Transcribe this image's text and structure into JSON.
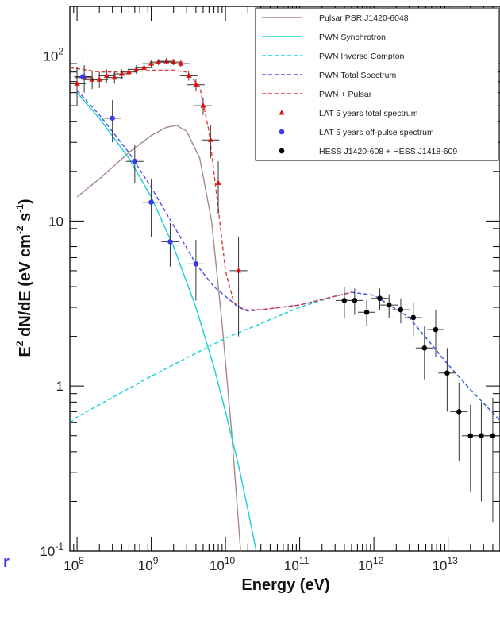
{
  "chart_data": {
    "type": "scatter",
    "title": "",
    "xlabel": "Energy (eV)",
    "ylabel": "E² dN/dE (eV cm⁻² s⁻¹)",
    "ylabel_parts": {
      "a": "E",
      "sup1": "2",
      "b": " dN/dE (eV cm",
      "sup2": "-2",
      "c": " s",
      "sup3": "-1",
      "d": ")"
    },
    "xscale": "log",
    "yscale": "log",
    "xlim": [
      80000000,
      50000000000000
    ],
    "ylim": [
      0.1,
      200
    ],
    "legend_position": "top-right",
    "x_tick_labels": [
      {
        "base": "10",
        "exp": "8",
        "value": 100000000
      },
      {
        "base": "10",
        "exp": "9",
        "value": 1000000000
      },
      {
        "base": "10",
        "exp": "10",
        "value": 10000000000
      },
      {
        "base": "10",
        "exp": "11",
        "value": 100000000000
      },
      {
        "base": "10",
        "exp": "12",
        "value": 1000000000000
      },
      {
        "base": "10",
        "exp": "13",
        "value": 10000000000000
      }
    ],
    "y_tick_labels": [
      {
        "base": "10",
        "exp": "-1",
        "value": 0.1
      },
      {
        "base": "1",
        "exp": "",
        "value": 1
      },
      {
        "base": "10",
        "exp": "",
        "value": 10
      },
      {
        "base": "10",
        "exp": "2",
        "value": 100
      }
    ],
    "curves": [
      {
        "name": "Pulsar PSR J1420-6048",
        "color": "#a88a80",
        "dash": false,
        "x": [
          100000000.0,
          200000000.0,
          500000000.0,
          1000000000.0,
          1600000000.0,
          2200000000.0,
          3000000000.0,
          4500000000.0,
          6500000000.0,
          9000000000.0,
          12000000000.0,
          14500000000.0,
          16000000000.0
        ],
        "y": [
          14,
          18,
          26,
          33,
          37,
          38,
          35,
          24,
          10,
          2.4,
          0.55,
          0.18,
          0.1
        ]
      },
      {
        "name": "PWN Synchrotron",
        "color": "#12d2d8",
        "dash": false,
        "x": [
          100000000.0,
          200000000.0,
          500000000.0,
          1000000000.0,
          2000000000.0,
          4000000000.0,
          7000000000.0,
          10000000000.0,
          15000000000.0,
          20000000000.0,
          26000000000.0
        ],
        "y": [
          60,
          42,
          24,
          14,
          7,
          3,
          1.3,
          0.7,
          0.33,
          0.18,
          0.1
        ]
      },
      {
        "name": "PWN Inverse Compton",
        "color": "#12d2d8",
        "dash": true,
        "x": [
          80000000.0,
          100000000.0,
          1000000000.0,
          10000000000.0,
          100000000000.0,
          300000000000.0,
          500000000000.0,
          1000000000000.0,
          3000000000000.0,
          10000000000000.0,
          20000000000000.0,
          50000000000000.0
        ],
        "y": [
          0.6,
          0.65,
          1.15,
          1.95,
          3.0,
          3.5,
          3.7,
          3.55,
          2.6,
          1.35,
          0.95,
          0.62
        ]
      },
      {
        "name": "PWN Total Spectrum",
        "color": "#4a50e8",
        "dash": true,
        "x": [
          100000000.0,
          200000000.0,
          500000000.0,
          1000000000.0,
          2000000000.0,
          4000000000.0,
          7000000000.0,
          10000000000.0,
          15000000000.0,
          20000000000.0,
          30000000000.0,
          100000000000.0,
          300000000000.0,
          500000000000.0,
          1000000000000.0,
          3000000000000.0,
          10000000000000.0,
          20000000000000.0,
          50000000000000.0
        ],
        "y": [
          62,
          44,
          26,
          16,
          9.4,
          5.5,
          4.0,
          3.5,
          3.0,
          2.85,
          2.9,
          3.1,
          3.5,
          3.7,
          3.55,
          2.6,
          1.35,
          0.95,
          0.62
        ]
      },
      {
        "name": "PWN + Pulsar",
        "color": "#e03a3a",
        "dash": true,
        "x": [
          80000000.0,
          100000000.0,
          200000000.0,
          500000000.0,
          1000000000.0,
          2000000000.0,
          3000000000.0,
          4500000000.0,
          6000000000.0,
          8000000000.0,
          10000000000.0,
          13000000000.0,
          18000000000.0,
          30000000000.0,
          100000000000.0,
          300000000000.0,
          500000000000.0
        ],
        "y": [
          85,
          84,
          80,
          80,
          82,
          82,
          80,
          65,
          35,
          12,
          5,
          3.2,
          2.9,
          2.9,
          3.1,
          3.5,
          3.7
        ]
      }
    ],
    "points": [
      {
        "name": "LAT 5 years total spectrum",
        "color": "#e01010",
        "marker": "triangle",
        "x": [
          100000000.0,
          125000000.0,
          160000000.0,
          200000000.0,
          250000000.0,
          320000000.0,
          400000000.0,
          500000000.0,
          630000000.0,
          800000000.0,
          1000000000.0,
          1250000000.0,
          1600000000.0,
          2000000000.0,
          2500000000.0,
          3200000000.0,
          4000000000.0,
          5000000000.0,
          6300000000.0,
          8000000000.0,
          15000000000.0
        ],
        "y": [
          68,
          74,
          72,
          72,
          76,
          74,
          78,
          80,
          83,
          85,
          90,
          92,
          93,
          92,
          90,
          76,
          67,
          50,
          31,
          17,
          5
        ],
        "err": [
          18,
          14,
          9,
          8,
          7,
          6,
          5,
          5,
          5,
          4,
          4,
          4,
          4,
          4,
          4,
          5,
          6,
          6,
          7,
          6,
          3
        ]
      },
      {
        "name": "LAT 5 years off-pulse spectrum",
        "color": "#3a3ae8",
        "marker": "circle",
        "x": [
          120000000.0,
          300000000.0,
          600000000.0,
          1000000000.0,
          1800000000.0,
          4000000000.0
        ],
        "y": [
          75,
          42,
          23,
          13,
          7.5,
          5.5
        ],
        "err": [
          30,
          12,
          6,
          5,
          2.2,
          2.2
        ]
      },
      {
        "name": "HESS J1420-608 + HESS J1418-609",
        "color": "#000000",
        "marker": "circle",
        "x": [
          400000000000.0,
          550000000000.0,
          800000000000.0,
          1200000000000.0,
          1600000000000.0,
          2300000000000.0,
          3400000000000.0,
          4800000000000.0,
          6800000000000.0,
          9700000000000.0,
          14000000000000.0,
          20000000000000.0,
          28000000000000.0,
          40000000000000.0
        ],
        "y": [
          3.3,
          3.3,
          2.8,
          3.4,
          3.1,
          2.9,
          2.6,
          1.7,
          2.2,
          1.2,
          0.7,
          0.5,
          0.5,
          0.5
        ],
        "err": [
          0.7,
          0.6,
          0.5,
          0.5,
          0.5,
          0.5,
          0.6,
          0.6,
          0.7,
          0.5,
          0.35,
          0.27,
          0.3,
          0.35
        ]
      }
    ],
    "legend": [
      {
        "label": "Pulsar PSR J1420-6048",
        "kind": "line",
        "color": "#a88a80",
        "dash": false
      },
      {
        "label": "PWN Synchrotron",
        "kind": "line",
        "color": "#12d2d8",
        "dash": false
      },
      {
        "label": "PWN Inverse Compton",
        "kind": "line",
        "color": "#12d2d8",
        "dash": true
      },
      {
        "label": "PWN Total Spectrum",
        "kind": "line",
        "color": "#4a50e8",
        "dash": true
      },
      {
        "label": "PWN + Pulsar",
        "kind": "line",
        "color": "#e03a3a",
        "dash": true
      },
      {
        "label": "LAT 5 years total spectrum",
        "kind": "triangle",
        "color": "#e01010"
      },
      {
        "label": "LAT 5 years off-pulse spectrum",
        "kind": "circle",
        "color": "#3a3ae8"
      },
      {
        "label": "HESS J1420-608 + HESS J1418-609",
        "kind": "circle",
        "color": "#000000"
      }
    ]
  },
  "edge_glyph": "r"
}
